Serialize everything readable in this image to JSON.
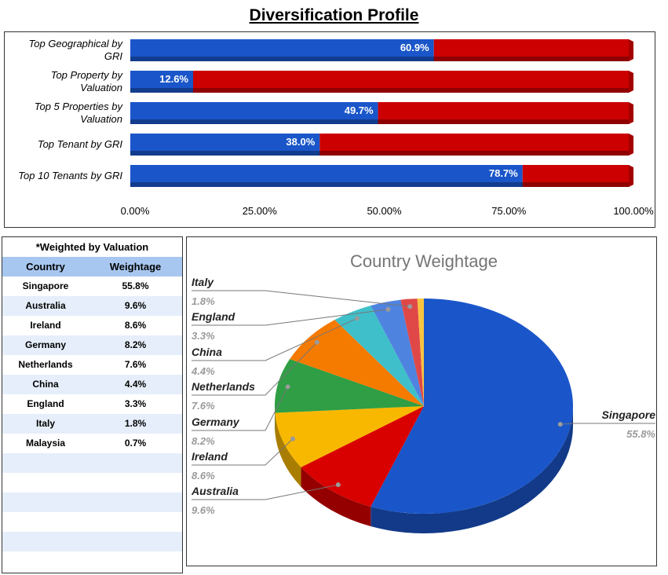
{
  "page": {
    "title": "Diversification Profile"
  },
  "chart_data": [
    {
      "type": "bar",
      "orientation": "horizontal",
      "stacked": true,
      "categories": [
        "Top Geographical by GRI",
        "Top Property by Valuation",
        "Top 5 Properties by Valuation",
        "Top Tenant by GRI",
        "Top 10 Tenants by GRI"
      ],
      "series": [
        {
          "values": [
            60.9,
            12.6,
            49.7,
            38.0,
            78.7
          ],
          "color": "#1a56c9"
        },
        {
          "values": [
            39.1,
            87.4,
            50.3,
            62.0,
            21.3
          ],
          "color": "#cc0000"
        }
      ],
      "data_labels": [
        "60.9%",
        "12.6%",
        "49.7%",
        "38.0%",
        "78.7%"
      ],
      "xlim": [
        0,
        100
      ],
      "x_ticks": [
        "0.00%",
        "25.00%",
        "50.00%",
        "75.00%",
        "100.00%"
      ],
      "style": "3d",
      "grid": false,
      "legend": "none"
    },
    {
      "type": "table",
      "caption": "*Weighted by Valuation",
      "headers": [
        "Country",
        "Weightage"
      ],
      "rows": [
        [
          "Singapore",
          "55.8%"
        ],
        [
          "Australia",
          "9.6%"
        ],
        [
          "Ireland",
          "8.6%"
        ],
        [
          "Germany",
          "8.2%"
        ],
        [
          "Netherlands",
          "7.6%"
        ],
        [
          "China",
          "4.4%"
        ],
        [
          "England",
          "3.3%"
        ],
        [
          "Italy",
          "1.8%"
        ],
        [
          "Malaysia",
          "0.7%"
        ]
      ],
      "empty_rows": 6
    },
    {
      "type": "pie",
      "style": "3d",
      "title": "Country Weightage",
      "slices": [
        {
          "label": "Singapore",
          "value": 55.8,
          "display": "55.8%",
          "color": "#1a56c9"
        },
        {
          "label": "Australia",
          "value": 9.6,
          "display": "9.6%",
          "color": "#d90000"
        },
        {
          "label": "Ireland",
          "value": 8.6,
          "display": "8.6%",
          "color": "#f9b800"
        },
        {
          "label": "Germany",
          "value": 8.2,
          "display": "8.2%",
          "color": "#2f9e44"
        },
        {
          "label": "Netherlands",
          "value": 7.6,
          "display": "7.6%",
          "color": "#f57a00"
        },
        {
          "label": "China",
          "value": 4.4,
          "display": "4.4%",
          "color": "#3fbfc9"
        },
        {
          "label": "England",
          "value": 3.3,
          "display": "3.3%",
          "color": "#4f83e0"
        },
        {
          "label": "Italy",
          "value": 1.8,
          "display": "1.8%",
          "color": "#e04848"
        },
        {
          "label": "Malaysia",
          "value": 0.7,
          "display": "",
          "color": "#f8c440"
        }
      ]
    }
  ],
  "colors": {
    "table_header_bg": "#a8c7f0",
    "table_stripe_bg": "#e6eefb",
    "label_value_grey": "#9a9a9a",
    "leader_line": "#777777"
  }
}
